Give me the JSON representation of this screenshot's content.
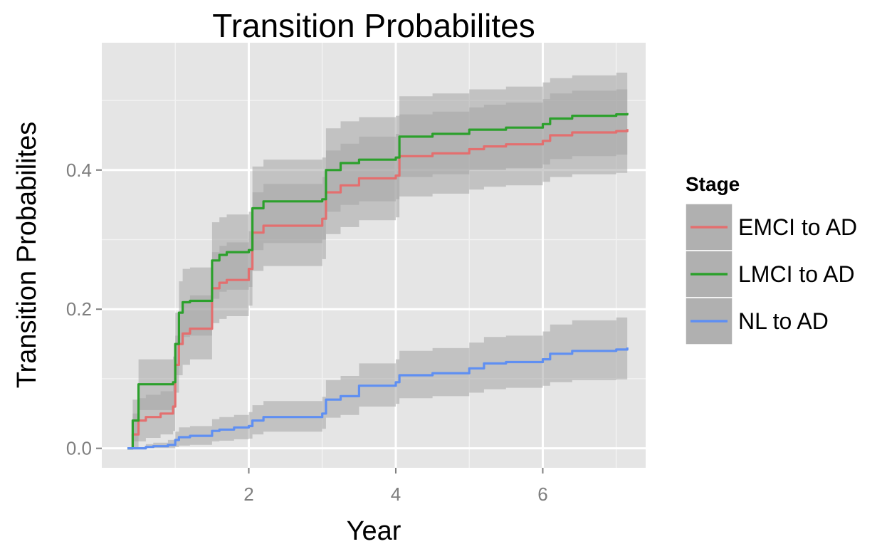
{
  "chart_data": {
    "type": "line",
    "title": "Transition Probabilites",
    "xlabel": "Year",
    "ylabel": "Transition Probabilites",
    "xlim": [
      0.0,
      7.4
    ],
    "ylim": [
      -0.028,
      0.583
    ],
    "x_ticks": [
      2,
      4,
      6
    ],
    "x_tick_labels": [
      "2",
      "4",
      "6"
    ],
    "y_ticks": [
      0.0,
      0.2,
      0.4
    ],
    "y_tick_labels": [
      "0.0",
      "0.2",
      "0.4"
    ],
    "grid": true,
    "step": true,
    "background": "#e5e5e5",
    "ribbon_color": "#a6a6a6",
    "legend": {
      "title": "Stage",
      "position": "right"
    },
    "series": [
      {
        "name": "EMCI to AD",
        "color": "#e36f6f",
        "x": [
          0.35,
          0.42,
          0.5,
          0.6,
          0.8,
          0.97,
          1.0,
          1.05,
          1.1,
          1.2,
          1.5,
          1.6,
          1.7,
          2.0,
          2.05,
          2.2,
          3.0,
          3.05,
          3.25,
          3.5,
          4.0,
          4.05,
          4.5,
          5.0,
          5.2,
          5.5,
          6.0,
          6.1,
          6.4,
          7.0,
          7.15
        ],
        "y": [
          0.0,
          0.02,
          0.04,
          0.045,
          0.05,
          0.06,
          0.12,
          0.15,
          0.165,
          0.172,
          0.23,
          0.238,
          0.242,
          0.258,
          0.31,
          0.32,
          0.33,
          0.368,
          0.378,
          0.388,
          0.392,
          0.42,
          0.424,
          0.43,
          0.434,
          0.437,
          0.442,
          0.45,
          0.454,
          0.456,
          0.459
        ],
        "lower": [
          0.0,
          0.0,
          0.01,
          0.015,
          0.02,
          0.025,
          0.08,
          0.105,
          0.12,
          0.128,
          0.18,
          0.186,
          0.19,
          0.205,
          0.255,
          0.262,
          0.272,
          0.308,
          0.318,
          0.328,
          0.332,
          0.362,
          0.366,
          0.372,
          0.376,
          0.378,
          0.383,
          0.39,
          0.394,
          0.396,
          0.398
        ],
        "upper": [
          0.0,
          0.05,
          0.072,
          0.077,
          0.082,
          0.092,
          0.162,
          0.196,
          0.212,
          0.22,
          0.282,
          0.291,
          0.296,
          0.312,
          0.368,
          0.38,
          0.39,
          0.428,
          0.438,
          0.448,
          0.452,
          0.48,
          0.484,
          0.49,
          0.494,
          0.497,
          0.502,
          0.51,
          0.514,
          0.516,
          0.52
        ]
      },
      {
        "name": "LMCI to AD",
        "color": "#2ca02c",
        "x": [
          0.35,
          0.42,
          0.5,
          0.97,
          1.0,
          1.05,
          1.1,
          1.2,
          1.5,
          1.6,
          1.7,
          2.0,
          2.05,
          2.2,
          3.0,
          3.05,
          3.25,
          3.5,
          4.0,
          4.05,
          4.5,
          5.0,
          5.2,
          5.5,
          6.0,
          6.1,
          6.4,
          7.0,
          7.15
        ],
        "y": [
          0.0,
          0.04,
          0.092,
          0.095,
          0.15,
          0.195,
          0.21,
          0.212,
          0.27,
          0.278,
          0.282,
          0.285,
          0.345,
          0.355,
          0.358,
          0.4,
          0.41,
          0.415,
          0.418,
          0.448,
          0.452,
          0.458,
          0.458,
          0.461,
          0.466,
          0.474,
          0.478,
          0.48,
          0.482
        ],
        "lower": [
          0.0,
          0.01,
          0.055,
          0.058,
          0.105,
          0.15,
          0.16,
          0.162,
          0.215,
          0.225,
          0.228,
          0.232,
          0.285,
          0.295,
          0.3,
          0.34,
          0.35,
          0.355,
          0.358,
          0.39,
          0.394,
          0.4,
          0.4,
          0.403,
          0.408,
          0.416,
          0.42,
          0.422,
          0.424
        ],
        "upper": [
          0.0,
          0.07,
          0.128,
          0.132,
          0.195,
          0.24,
          0.258,
          0.26,
          0.325,
          0.332,
          0.336,
          0.34,
          0.405,
          0.415,
          0.418,
          0.46,
          0.47,
          0.476,
          0.478,
          0.506,
          0.51,
          0.516,
          0.516,
          0.52,
          0.526,
          0.532,
          0.536,
          0.54,
          0.545
        ]
      },
      {
        "name": "NL to AD",
        "color": "#5f8ff2",
        "x": [
          0.35,
          0.6,
          0.7,
          0.9,
          1.0,
          1.05,
          1.2,
          1.5,
          1.6,
          1.8,
          2.0,
          2.05,
          2.2,
          3.0,
          3.05,
          3.25,
          3.5,
          4.0,
          4.05,
          4.5,
          5.0,
          5.2,
          5.5,
          6.0,
          6.1,
          6.4,
          7.0,
          7.15
        ],
        "y": [
          0.0,
          0.002,
          0.003,
          0.005,
          0.012,
          0.016,
          0.018,
          0.025,
          0.027,
          0.03,
          0.032,
          0.04,
          0.045,
          0.05,
          0.07,
          0.075,
          0.09,
          0.095,
          0.105,
          0.108,
          0.115,
          0.122,
          0.124,
          0.128,
          0.136,
          0.14,
          0.142,
          0.145
        ],
        "lower": [
          0.0,
          0.0,
          0.0,
          0.0,
          0.002,
          0.004,
          0.005,
          0.01,
          0.011,
          0.013,
          0.014,
          0.02,
          0.024,
          0.028,
          0.044,
          0.048,
          0.06,
          0.064,
          0.072,
          0.075,
          0.08,
          0.085,
          0.087,
          0.09,
          0.095,
          0.098,
          0.099,
          0.102
        ],
        "upper": [
          0.0,
          0.006,
          0.008,
          0.012,
          0.024,
          0.03,
          0.032,
          0.042,
          0.045,
          0.048,
          0.052,
          0.062,
          0.068,
          0.074,
          0.098,
          0.104,
          0.122,
          0.128,
          0.14,
          0.144,
          0.152,
          0.16,
          0.162,
          0.168,
          0.178,
          0.184,
          0.188,
          0.192
        ]
      }
    ]
  }
}
